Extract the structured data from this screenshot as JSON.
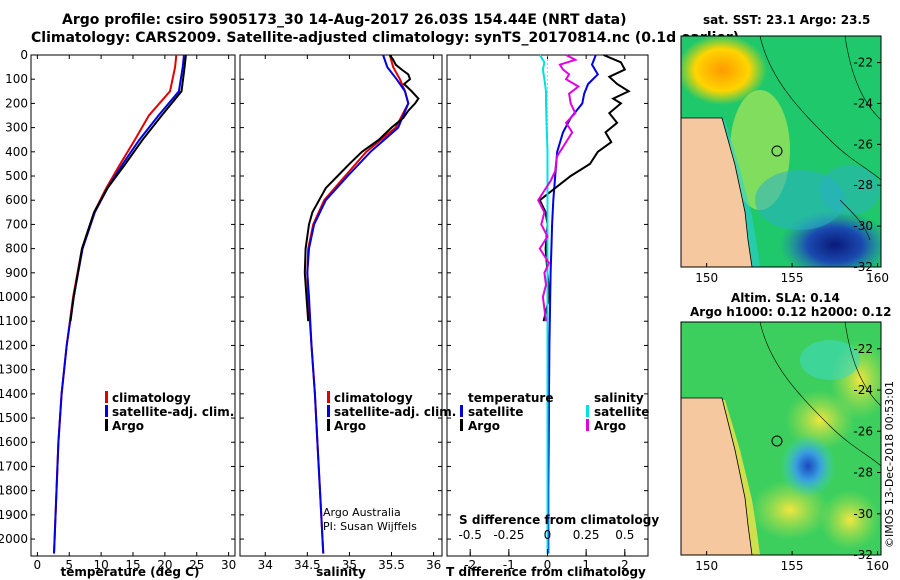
{
  "header": {
    "line1": "Argo profile: csiro 5905173_30 14-Aug-2017 26.03S 154.44E (NRT data)",
    "line2": "Climatology: CARS2009. Satellite-adjusted climatology: synTS_20170814.nc (0.1d earlier)"
  },
  "colors": {
    "climatology": "#e00000",
    "satellite": "#0000e0",
    "argo": "#000000",
    "sat_diff_S": "#00e0e0",
    "argo_diff_S": "#e000e0",
    "land": "#f5c8a0"
  },
  "chart_data": [
    {
      "id": "temperature",
      "type": "line",
      "xlabel": "temperature (deg C)",
      "ylabel": "",
      "xlim": [
        -1,
        31
      ],
      "ylim": [
        2070,
        0
      ],
      "xticks": [
        "0",
        "5",
        "10",
        "15",
        "20",
        "25",
        "30"
      ],
      "yticks": [
        "0",
        "100",
        "200",
        "300",
        "400",
        "500",
        "600",
        "700",
        "800",
        "900",
        "1000",
        "1100",
        "1200",
        "1300",
        "1400",
        "1500",
        "1600",
        "1700",
        "1800",
        "1900",
        "2000"
      ],
      "legend": [
        "climatology",
        "satellite-adj. clim.",
        "Argo"
      ],
      "series": [
        {
          "name": "climatology",
          "depth": [
            0,
            50,
            150,
            250,
            350,
            450,
            550,
            650,
            800,
            1000,
            1200,
            1400,
            1600,
            1800,
            2000,
            2060
          ],
          "values": [
            21.8,
            21.6,
            20.8,
            17.5,
            15.3,
            13.0,
            10.8,
            8.9,
            7.0,
            5.6,
            4.6,
            3.8,
            3.3,
            3.0,
            2.7,
            2.6
          ]
        },
        {
          "name": "satellite-adj. clim.",
          "depth": [
            0,
            50,
            150,
            250,
            350,
            450,
            550,
            650,
            800,
            1000,
            1200,
            1400,
            1600,
            1800,
            2000,
            2060
          ],
          "values": [
            23.0,
            22.8,
            22.2,
            19.0,
            16.0,
            13.4,
            11.0,
            9.0,
            7.1,
            5.7,
            4.6,
            3.8,
            3.3,
            3.0,
            2.7,
            2.6
          ]
        },
        {
          "name": "Argo",
          "depth": [
            0,
            50,
            150,
            250,
            350,
            450,
            550,
            650,
            800,
            1000,
            1100
          ],
          "values": [
            23.3,
            23.1,
            22.6,
            19.5,
            16.5,
            13.8,
            11.0,
            8.9,
            7.0,
            5.7,
            5.2
          ]
        }
      ]
    },
    {
      "id": "salinity",
      "type": "line",
      "xlabel": "salinity",
      "ylabel": "",
      "xlim": [
        33.7,
        36.1
      ],
      "ylim": [
        2070,
        0
      ],
      "xticks": [
        "34",
        "34.5",
        "35",
        "35.5",
        "36"
      ],
      "legend": [
        "climatology",
        "satellite-adj. clim.",
        "Argo"
      ],
      "annotation": [
        "Argo Australia",
        "PI: Susan Wijffels"
      ],
      "series": [
        {
          "name": "climatology",
          "depth": [
            0,
            50,
            100,
            150,
            200,
            300,
            400,
            500,
            600,
            700,
            800,
            900,
            1000,
            1200,
            1400,
            1600,
            1800,
            2000,
            2060
          ],
          "values": [
            35.48,
            35.52,
            35.6,
            35.66,
            35.7,
            35.55,
            35.2,
            34.95,
            34.7,
            34.57,
            34.51,
            34.5,
            34.51,
            34.55,
            34.59,
            34.62,
            34.65,
            34.68,
            34.69
          ]
        },
        {
          "name": "satellite-adj. clim.",
          "depth": [
            0,
            50,
            100,
            150,
            200,
            300,
            400,
            500,
            600,
            700,
            800,
            900,
            1000,
            1200,
            1400,
            1600,
            1800,
            2000,
            2060
          ],
          "values": [
            35.4,
            35.45,
            35.56,
            35.66,
            35.7,
            35.58,
            35.25,
            34.98,
            34.72,
            34.58,
            34.52,
            34.5,
            34.52,
            34.55,
            34.59,
            34.62,
            34.65,
            34.68,
            34.69
          ]
        },
        {
          "name": "Argo",
          "depth": [
            0,
            20,
            40,
            60,
            80,
            100,
            120,
            150,
            180,
            200,
            230,
            260,
            300,
            350,
            400,
            450,
            500,
            550,
            600,
            650,
            700,
            800,
            900,
            1000,
            1100
          ],
          "values": [
            35.48,
            35.52,
            35.55,
            35.62,
            35.7,
            35.72,
            35.65,
            35.74,
            35.82,
            35.78,
            35.7,
            35.64,
            35.5,
            35.35,
            35.15,
            35.0,
            34.86,
            34.72,
            34.64,
            34.56,
            34.52,
            34.48,
            34.47,
            34.49,
            34.51
          ]
        }
      ]
    },
    {
      "id": "difference",
      "type": "line",
      "xlabel": "T difference from climatology",
      "xlabel_top": "S difference from climatology",
      "xlim": [
        -2.6,
        2.6
      ],
      "ylim": [
        2070,
        0
      ],
      "xticks": [
        "-2",
        "-1",
        "0",
        "1",
        "2"
      ],
      "xticks_S": [
        "-0.5",
        "-0.25",
        "0",
        "0.25",
        "0.5"
      ],
      "legend_T": {
        "title": "temperature",
        "items": [
          "satellite",
          "Argo"
        ]
      },
      "legend_S": {
        "title": "salinity",
        "items": [
          "satellite",
          "Argo"
        ]
      },
      "series": [
        {
          "name": "T satellite",
          "depth": [
            0,
            40,
            80,
            120,
            160,
            200,
            260,
            320,
            400,
            500,
            600,
            700,
            800,
            900,
            1000,
            1200,
            1400,
            1600,
            1800,
            2000,
            2060
          ],
          "values": [
            1.25,
            1.15,
            1.3,
            1.05,
            0.95,
            0.9,
            0.6,
            0.4,
            0.25,
            0.2,
            0.15,
            0.12,
            0.1,
            0.08,
            0.07,
            0.05,
            0.04,
            0.03,
            0.02,
            0.02,
            0.02
          ]
        },
        {
          "name": "T Argo",
          "depth": [
            0,
            30,
            60,
            90,
            120,
            150,
            180,
            200,
            240,
            280,
            320,
            360,
            400,
            450,
            500,
            550,
            600,
            650,
            700,
            800,
            900,
            1000,
            1100
          ],
          "values": [
            1.45,
            1.9,
            2.0,
            1.6,
            1.8,
            2.1,
            1.7,
            1.9,
            1.6,
            1.8,
            1.5,
            1.65,
            1.3,
            1.1,
            0.6,
            0.2,
            -0.2,
            -0.05,
            0.0,
            -0.05,
            0.0,
            0.05,
            -0.1
          ]
        },
        {
          "name": "S satellite",
          "depth": [
            0,
            30,
            60,
            100,
            150,
            200,
            300,
            400,
            600,
            800,
            1000,
            1200,
            1400,
            1600,
            1800,
            2000,
            2060
          ],
          "values": [
            -0.05,
            -0.02,
            -0.03,
            -0.02,
            -0.01,
            -0.01,
            -0.005,
            0.0,
            0.0,
            0.0,
            0.0,
            0.0,
            0.0,
            0.0,
            0.0,
            0.0,
            0.0
          ]
        },
        {
          "name": "S Argo",
          "depth": [
            0,
            20,
            40,
            60,
            80,
            100,
            130,
            160,
            200,
            240,
            280,
            320,
            380,
            420,
            480,
            520,
            560,
            600,
            650,
            700,
            750,
            800,
            860,
            900,
            950,
            1000,
            1100
          ],
          "values": [
            0.12,
            0.18,
            0.08,
            0.1,
            0.14,
            0.12,
            0.2,
            0.14,
            0.15,
            0.18,
            0.12,
            0.16,
            0.1,
            0.06,
            0.05,
            0.02,
            -0.02,
            -0.06,
            -0.02,
            -0.04,
            0.0,
            -0.05,
            0.01,
            -0.02,
            -0.01,
            -0.03,
            -0.01
          ]
        }
      ]
    }
  ],
  "map1": {
    "title": "sat. SST: 23.1  Argo: 23.5",
    "xticks": [
      "150",
      "155",
      "160"
    ],
    "yticks": [
      "-22",
      "-24",
      "-26",
      "-28",
      "-30",
      "-32"
    ]
  },
  "map2": {
    "title1": "Altim. SLA: 0.14",
    "title2": "Argo h1000: 0.12 h2000: 0.12",
    "xticks": [
      "150",
      "155",
      "160"
    ],
    "yticks": [
      "-22",
      "-24",
      "-26",
      "-28",
      "-30",
      "-32"
    ]
  },
  "watermark": "©IMOS 13-Dec-2018 00:53:01"
}
